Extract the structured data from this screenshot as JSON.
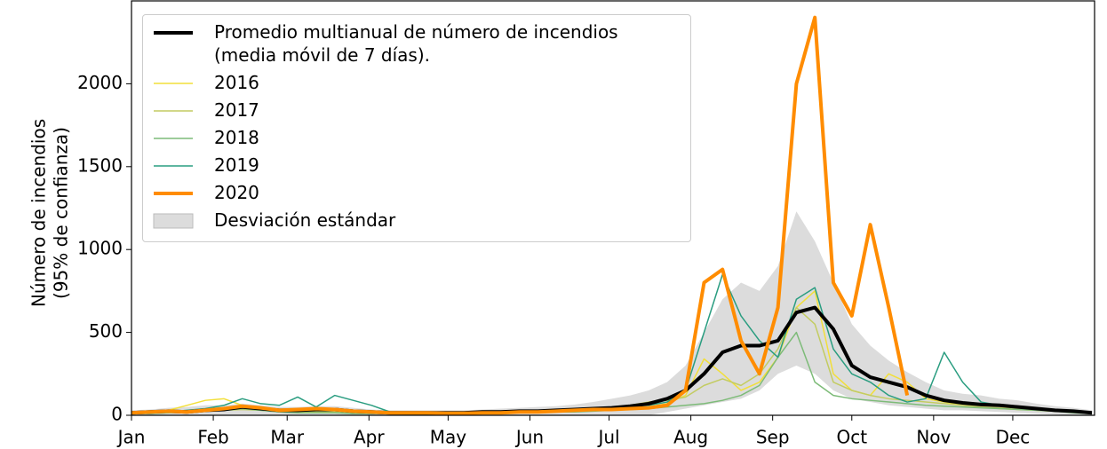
{
  "chart_data": {
    "type": "line",
    "y_label": [
      "Número de incendios",
      "(95% de confianza)"
    ],
    "x": [
      0,
      7,
      14,
      21,
      28,
      35,
      42,
      49,
      56,
      63,
      70,
      77,
      84,
      91,
      98,
      105,
      112,
      119,
      126,
      133,
      140,
      147,
      154,
      161,
      168,
      175,
      182,
      189,
      196,
      203,
      210,
      217,
      224,
      231,
      238,
      245,
      252,
      259,
      266,
      273,
      280,
      287,
      294,
      301,
      308,
      315,
      322,
      329,
      336,
      343,
      350,
      357,
      364
    ],
    "xlim": [
      0,
      365
    ],
    "xticks": [
      {
        "value": 0,
        "label": "Jan"
      },
      {
        "value": 31,
        "label": "Feb"
      },
      {
        "value": 59,
        "label": "Mar"
      },
      {
        "value": 90,
        "label": "Apr"
      },
      {
        "value": 120,
        "label": "May"
      },
      {
        "value": 151,
        "label": "Jun"
      },
      {
        "value": 181,
        "label": "Jul"
      },
      {
        "value": 212,
        "label": "Aug"
      },
      {
        "value": 243,
        "label": "Sep"
      },
      {
        "value": 273,
        "label": "Oct"
      },
      {
        "value": 304,
        "label": "Nov"
      },
      {
        "value": 334,
        "label": "Dec"
      }
    ],
    "ylim": [
      0,
      2500
    ],
    "yticks": [
      0,
      500,
      1000,
      1500,
      2000
    ],
    "legend": "upper left",
    "band": {
      "name": "Desviación estándar",
      "color": "#dcdcdc",
      "lower": [
        0,
        0,
        0,
        0,
        0,
        0,
        0,
        0,
        0,
        0,
        0,
        0,
        0,
        0,
        0,
        0,
        0,
        0,
        0,
        0,
        0,
        0,
        0,
        0,
        0,
        0,
        0,
        0,
        0,
        20,
        40,
        60,
        80,
        100,
        150,
        250,
        300,
        250,
        150,
        100,
        80,
        60,
        50,
        40,
        30,
        30,
        25,
        20,
        15,
        10,
        5,
        0,
        0
      ],
      "upper": [
        30,
        35,
        45,
        50,
        60,
        60,
        70,
        60,
        50,
        50,
        55,
        55,
        45,
        35,
        30,
        30,
        30,
        30,
        30,
        35,
        40,
        45,
        50,
        55,
        65,
        80,
        100,
        120,
        150,
        200,
        300,
        500,
        700,
        800,
        750,
        900,
        1230,
        1050,
        800,
        550,
        420,
        330,
        260,
        200,
        150,
        130,
        120,
        100,
        90,
        70,
        55,
        45,
        30
      ]
    },
    "series": [
      {
        "name": "Promedio multianual de número de incendios (media móvil de 7 días).",
        "color": "#000000",
        "width": 4,
        "values": [
          15,
          20,
          25,
          20,
          30,
          35,
          50,
          40,
          30,
          30,
          35,
          35,
          25,
          20,
          15,
          15,
          15,
          15,
          15,
          20,
          20,
          25,
          25,
          30,
          35,
          40,
          45,
          55,
          70,
          100,
          150,
          250,
          380,
          420,
          420,
          450,
          620,
          650,
          520,
          300,
          230,
          200,
          170,
          120,
          90,
          75,
          65,
          60,
          50,
          40,
          30,
          25,
          15
        ]
      },
      {
        "name": "2016",
        "color": "#f2df3a",
        "width": 1.5,
        "values": [
          10,
          15,
          30,
          60,
          90,
          100,
          60,
          40,
          25,
          20,
          25,
          30,
          20,
          15,
          10,
          10,
          10,
          10,
          10,
          15,
          15,
          20,
          25,
          25,
          30,
          35,
          40,
          45,
          50,
          70,
          120,
          340,
          250,
          150,
          200,
          350,
          650,
          750,
          250,
          150,
          120,
          250,
          200,
          100,
          80,
          60,
          50,
          40,
          35,
          30,
          25,
          20,
          10
        ]
      },
      {
        "name": "2017",
        "color": "#c3cc62",
        "width": 1.5,
        "values": [
          10,
          15,
          20,
          20,
          25,
          30,
          35,
          30,
          25,
          20,
          20,
          20,
          15,
          15,
          10,
          10,
          10,
          10,
          15,
          15,
          20,
          20,
          25,
          30,
          35,
          40,
          50,
          60,
          80,
          90,
          110,
          180,
          220,
          180,
          250,
          400,
          650,
          550,
          200,
          150,
          120,
          100,
          90,
          80,
          70,
          60,
          50,
          45,
          40,
          30,
          25,
          20,
          10
        ]
      },
      {
        "name": "2018",
        "color": "#7dbb78",
        "width": 1.5,
        "values": [
          10,
          10,
          15,
          20,
          25,
          30,
          40,
          30,
          20,
          15,
          15,
          15,
          10,
          10,
          10,
          8,
          8,
          8,
          10,
          10,
          12,
          15,
          15,
          20,
          20,
          25,
          30,
          35,
          40,
          50,
          60,
          70,
          90,
          120,
          180,
          350,
          500,
          200,
          120,
          100,
          90,
          80,
          70,
          60,
          55,
          50,
          45,
          40,
          35,
          30,
          25,
          15,
          10
        ]
      },
      {
        "name": "2019",
        "color": "#2a9d80",
        "width": 1.5,
        "values": [
          10,
          15,
          20,
          30,
          40,
          60,
          100,
          70,
          60,
          110,
          50,
          120,
          90,
          60,
          20,
          15,
          10,
          10,
          15,
          20,
          20,
          25,
          25,
          25,
          30,
          35,
          45,
          55,
          60,
          80,
          150,
          500,
          850,
          600,
          450,
          350,
          700,
          770,
          400,
          250,
          200,
          120,
          80,
          100,
          380,
          200,
          80,
          60,
          50,
          40,
          30,
          20,
          10
        ]
      },
      {
        "name": "2020",
        "color": "#ff8c00",
        "width": 4,
        "values": [
          15,
          20,
          25,
          20,
          30,
          40,
          55,
          45,
          30,
          35,
          40,
          35,
          25,
          20,
          15,
          15,
          15,
          12,
          12,
          15,
          15,
          20,
          20,
          25,
          30,
          35,
          35,
          40,
          45,
          60,
          150,
          800,
          880,
          450,
          250,
          650,
          2000,
          2400,
          800,
          600,
          1150,
          650,
          120,
          null,
          null,
          null,
          null,
          null,
          null,
          null,
          null,
          null,
          null
        ]
      }
    ]
  }
}
